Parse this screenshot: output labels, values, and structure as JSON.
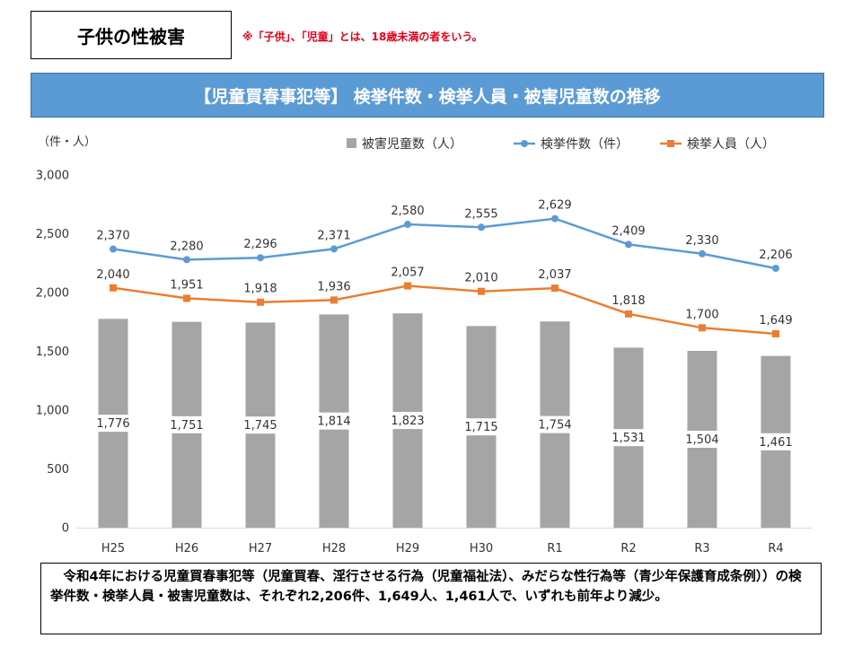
{
  "header": {
    "section_title": "子供の性被害",
    "note": "※「子供」、「児童」とは、18歳未満の者をいう。",
    "banner_title": "【児童買春事犯等】 検挙件数・検挙人員・被害児童数の推移"
  },
  "colors": {
    "banner": "#5b9bd5",
    "bar": "#a5a5a5",
    "cases_line": "#5b9bd5",
    "persons_line": "#ed7d31",
    "note_text": "#e0001b"
  },
  "chart_data": {
    "type": "bar+line",
    "unit_label": "（件・人）",
    "categories": [
      "H25",
      "H26",
      "H27",
      "H28",
      "H29",
      "H30",
      "R1",
      "R2",
      "R3",
      "R4"
    ],
    "ylim": [
      0,
      3000
    ],
    "yticks": [
      0,
      500,
      1000,
      1500,
      2000,
      2500,
      3000
    ],
    "ytick_labels": [
      "0",
      "500",
      "1,000",
      "1,500",
      "2,000",
      "2,500",
      "3,000"
    ],
    "legend_position": "top-right",
    "series": [
      {
        "name": "被害児童数（人）",
        "kind": "bar",
        "values": [
          1776,
          1751,
          1745,
          1814,
          1823,
          1715,
          1754,
          1531,
          1504,
          1461
        ],
        "labels": [
          "1,776",
          "1,751",
          "1,745",
          "1,814",
          "1,823",
          "1,715",
          "1,754",
          "1,531",
          "1,504",
          "1,461"
        ]
      },
      {
        "name": "検挙件数（件）",
        "kind": "line",
        "values": [
          2370,
          2280,
          2296,
          2371,
          2580,
          2555,
          2629,
          2409,
          2330,
          2206
        ],
        "labels": [
          "2,370",
          "2,280",
          "2,296",
          "2,371",
          "2,580",
          "2,555",
          "2,629",
          "2,409",
          "2,330",
          "2,206"
        ]
      },
      {
        "name": "検挙人員（人）",
        "kind": "line",
        "values": [
          2040,
          1951,
          1918,
          1936,
          2057,
          2010,
          2037,
          1818,
          1700,
          1649
        ],
        "labels": [
          "2,040",
          "1,951",
          "1,918",
          "1,936",
          "2,057",
          "2,010",
          "2,037",
          "1,818",
          "1,700",
          "1,649"
        ]
      }
    ]
  },
  "description": "令和4年における児童買春事犯等（児童買春、淫行させる行為（児童福祉法）、みだらな性行為等（青少年保護育成条例））の検挙件数・検挙人員・被害児童数は、それぞれ2,206件、1,649人、1,461人で、いずれも前年より減少。"
}
